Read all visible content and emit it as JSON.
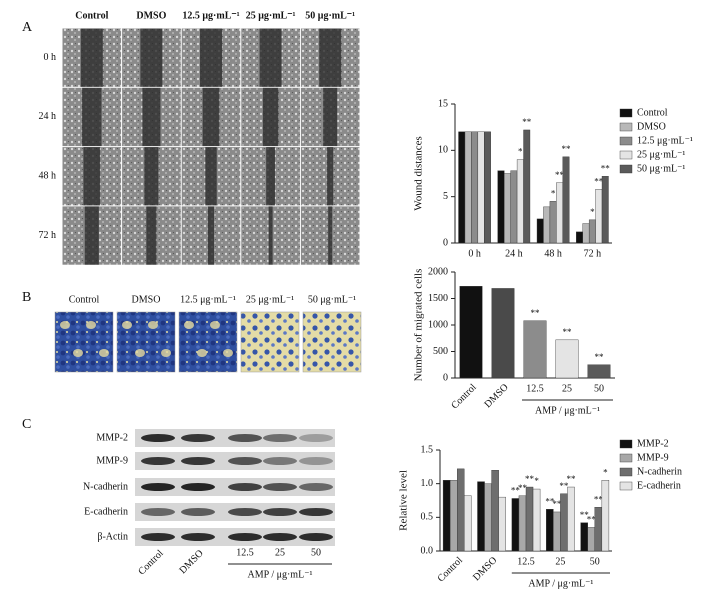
{
  "panel_labels": [
    "A",
    "B",
    "C"
  ],
  "wound_images": {
    "columns": [
      "Control",
      "DMSO",
      "12.5 μg·mL⁻¹",
      "25 μg·mL⁻¹",
      "50 μg·mL⁻¹"
    ],
    "rows": [
      "0 h",
      "24 h",
      "48 h",
      "72 h"
    ]
  },
  "transwell_images": {
    "columns": [
      "Control",
      "DMSO",
      "12.5 μg·mL⁻¹",
      "25 μg·mL⁻¹",
      "50 μg·mL⁻¹"
    ]
  },
  "western_blot": {
    "proteins": [
      "MMP-2",
      "MMP-9",
      "N-cadherin",
      "E-cadherin",
      "β-Actin"
    ],
    "lanes": [
      "Control",
      "DMSO",
      "12.5",
      "25",
      "50"
    ],
    "group_label": "AMP / μg·mL⁻¹"
  },
  "chart_data": [
    {
      "type": "bar",
      "y_label": "Wound distances",
      "categories": [
        "0 h",
        "24 h",
        "48 h",
        "72 h"
      ],
      "ylim": [
        0,
        15
      ],
      "yticks": [
        0,
        5,
        10,
        15
      ],
      "legend": "right",
      "series": [
        {
          "name": "Control",
          "color": "#111111",
          "values": [
            12,
            7.8,
            2.6,
            1.2
          ],
          "significance": [
            null,
            null,
            null,
            null
          ]
        },
        {
          "name": "DMSO",
          "color": "#b8b8b8",
          "values": [
            12,
            7.5,
            3.9,
            2.1
          ],
          "significance": [
            null,
            null,
            null,
            null
          ]
        },
        {
          "name": "12.5 μg·mL⁻¹",
          "color": "#8c8c8c",
          "values": [
            12,
            7.8,
            4.5,
            2.5
          ],
          "significance": [
            null,
            null,
            "*",
            "*"
          ]
        },
        {
          "name": "25 μg·mL⁻¹",
          "color": "#e4e4e4",
          "values": [
            12,
            9.0,
            6.5,
            5.8
          ],
          "significance": [
            null,
            "*",
            "**",
            "**"
          ]
        },
        {
          "name": "50 μg·mL⁻¹",
          "color": "#5a5a5a",
          "values": [
            12,
            12.2,
            9.3,
            7.2
          ],
          "significance": [
            null,
            "**",
            "**",
            "**"
          ]
        }
      ]
    },
    {
      "type": "bar",
      "y_label": "Number of migrated cells",
      "categories": [
        "Control",
        "DMSO",
        "12.5",
        "25",
        "50"
      ],
      "ylim": [
        0,
        2000
      ],
      "yticks": [
        0,
        500,
        1000,
        1500,
        2000
      ],
      "values": [
        1730,
        1690,
        1080,
        720,
        250
      ],
      "colors": [
        "#111111",
        "#4a4a4a",
        "#8c8c8c",
        "#e4e4e4",
        "#5a5a5a"
      ],
      "significance": [
        null,
        null,
        "**",
        "**",
        "**"
      ],
      "group_label": "AMP / μg·mL⁻¹"
    },
    {
      "type": "bar",
      "y_label": "Relative level",
      "categories": [
        "Control",
        "DMSO",
        "12.5",
        "25",
        "50"
      ],
      "ylim": [
        0,
        1.5
      ],
      "yticks": [
        {
          "value": 0,
          "label": "0.0"
        },
        {
          "value": 0.5,
          "label": "0.5"
        },
        {
          "value": 1,
          "label": "1.0"
        },
        {
          "value": 1.5,
          "label": "1.5"
        }
      ],
      "legend": "right",
      "group_label": "AMP / μg·mL⁻¹",
      "series": [
        {
          "name": "MMP-2",
          "color": "#111111",
          "values": [
            1.05,
            1.03,
            0.78,
            0.62,
            0.42
          ],
          "significance": [
            null,
            null,
            "**",
            "**",
            "**"
          ]
        },
        {
          "name": "MMP-9",
          "color": "#a8a8a8",
          "values": [
            1.05,
            1.0,
            0.82,
            0.58,
            0.35
          ],
          "significance": [
            null,
            null,
            "**",
            "**",
            "**"
          ]
        },
        {
          "name": "N-cadherin",
          "color": "#6e6e6e",
          "values": [
            1.22,
            1.2,
            0.95,
            0.85,
            0.65
          ],
          "significance": [
            null,
            null,
            "**",
            "**",
            "**"
          ]
        },
        {
          "name": "E-cadherin",
          "color": "#e4e4e4",
          "values": [
            0.82,
            0.8,
            0.92,
            0.95,
            1.05
          ],
          "significance": [
            null,
            null,
            "*",
            "**",
            "*"
          ]
        }
      ]
    }
  ]
}
